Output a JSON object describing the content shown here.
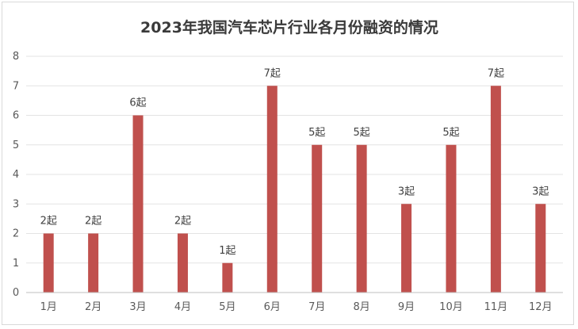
{
  "chart_data": {
    "type": "bar",
    "title": "2023年我国汽车芯片行业各月份融资的情况",
    "categories": [
      "1月",
      "2月",
      "3月",
      "4月",
      "5月",
      "6月",
      "7月",
      "8月",
      "9月",
      "10月",
      "11月",
      "12月"
    ],
    "values": [
      2,
      2,
      6,
      2,
      1,
      7,
      5,
      5,
      3,
      5,
      7,
      3
    ],
    "data_labels": [
      "2起",
      "2起",
      "6起",
      "2起",
      "1起",
      "7起",
      "5起",
      "5起",
      "3起",
      "5起",
      "7起",
      "3起"
    ],
    "y_ticks": [
      "0",
      "1",
      "2",
      "3",
      "4",
      "5",
      "6",
      "7",
      "8"
    ],
    "ylim": [
      0,
      8
    ],
    "grid": true,
    "legend": "none",
    "bar_color": "#c0504d",
    "grid_color": "#e3e3e3",
    "axis_color": "#bfbfbf"
  }
}
